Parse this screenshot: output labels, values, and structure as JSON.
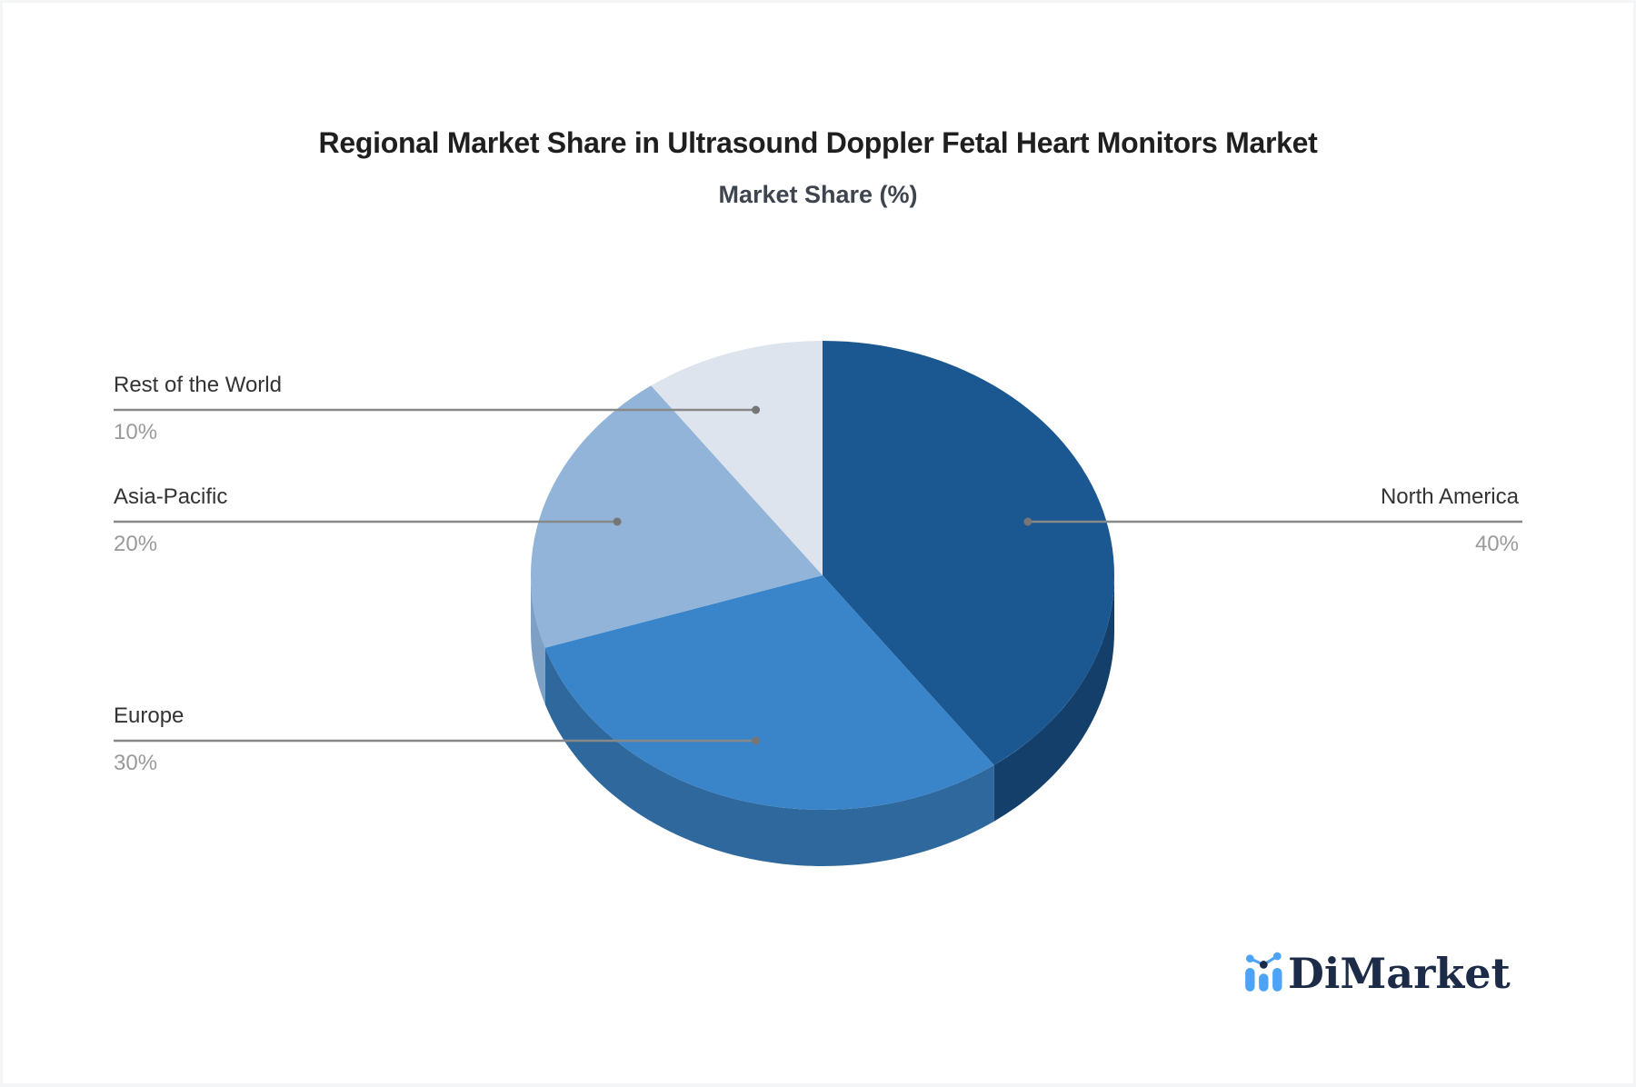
{
  "chart_data": {
    "type": "pie",
    "title": "Regional Market Share in Ultrasound Doppler Fetal Heart Monitors Market",
    "subtitle": "Market Share (%)",
    "unit": "%",
    "categories": [
      "North America",
      "Europe",
      "Asia-Pacific",
      "Rest of the World"
    ],
    "values": [
      40,
      30,
      20,
      10
    ],
    "labels": [
      "40%",
      "30%",
      "20%",
      "10%"
    ],
    "start_angle_deg": 0,
    "direction": "clockwise",
    "effect": "3d-depth",
    "legend": "none",
    "label_style": "callout-leader-lines",
    "colors": {
      "top": [
        "#1b5791",
        "#3a85c9",
        "#91b4d8",
        "#dee4ee"
      ],
      "side": [
        "#133f6a",
        "#2e689c",
        "#7fa0c5",
        "#c9d3e2"
      ]
    },
    "leader_line_color": "#888888",
    "leader_dot_color": "#767676",
    "title_color": "#1f1f1f",
    "subtitle_color": "#3f454e",
    "label_name_color": "#333333",
    "label_value_color": "#9a9a9a"
  },
  "branding": {
    "logo_text": "DiMarket",
    "logo_icon": "bar-chart-trend-icon",
    "logo_text_color": "#1c2b47",
    "logo_accent_color": "#4da3f7"
  }
}
